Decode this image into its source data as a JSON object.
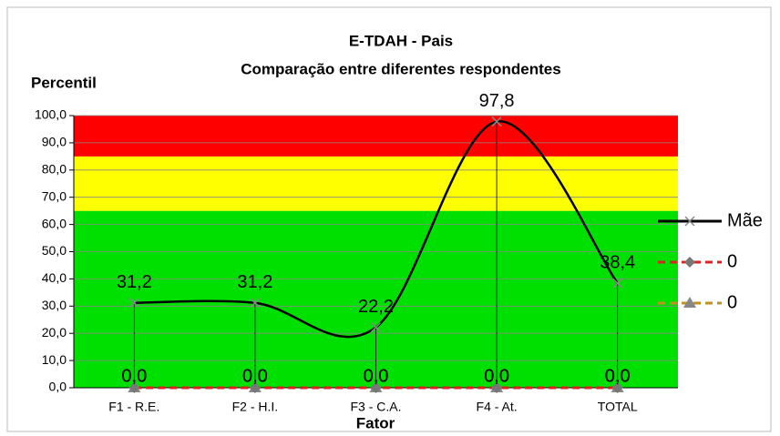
{
  "chart_data": {
    "type": "line",
    "title": "E-TDAH - Pais",
    "subtitle": "Comparação entre diferentes respondentes",
    "y_label": "Percentil",
    "x_label": "Fator",
    "categories": [
      "F1 - R.E.",
      "F2 - H.I.",
      "F3 - C.A.",
      "F4 - At.",
      "TOTAL"
    ],
    "series": [
      {
        "name": "Mãe",
        "color": "#000000",
        "dash": false,
        "marker": "x",
        "smooth": true,
        "values": [
          31.2,
          31.2,
          22.2,
          97.8,
          38.4
        ],
        "value_labels": [
          "31,2",
          "31,2",
          "22,2",
          "97,8",
          "38,4"
        ]
      },
      {
        "name": "0",
        "color": "#e02020",
        "dash": true,
        "marker": "diamond",
        "smooth": false,
        "values": [
          0,
          0,
          0,
          0,
          0
        ],
        "value_labels": [
          "0,0",
          "0,0",
          "0,0",
          "0,0",
          "0,0"
        ]
      },
      {
        "name": "0",
        "color": "#c09020",
        "dash": true,
        "marker": "triangle",
        "smooth": false,
        "values": [
          0,
          0,
          0,
          0,
          0
        ],
        "value_labels": [
          "0,0",
          "0,0",
          "0,0",
          "0,0",
          "0,0"
        ]
      }
    ],
    "bands": [
      {
        "from": 0,
        "to": 65,
        "color": "#00e000"
      },
      {
        "from": 65,
        "to": 85,
        "color": "#ffff00"
      },
      {
        "from": 85,
        "to": 100,
        "color": "#ff0000"
      }
    ],
    "ylim": [
      0,
      100
    ],
    "yticks": [
      {
        "value": 0,
        "label": "0,0"
      },
      {
        "value": 10,
        "label": "10,0"
      },
      {
        "value": 20,
        "label": "20,0"
      },
      {
        "value": 30,
        "label": "30,0"
      },
      {
        "value": 40,
        "label": "40,0"
      },
      {
        "value": 50,
        "label": "50,0"
      },
      {
        "value": 60,
        "label": "60,0"
      },
      {
        "value": 70,
        "label": "70,0"
      },
      {
        "value": 80,
        "label": "80,0"
      },
      {
        "value": 90,
        "label": "90,0"
      },
      {
        "value": 100,
        "label": "100,0"
      }
    ],
    "grid": true,
    "drop_lines": true,
    "legend": "right"
  }
}
